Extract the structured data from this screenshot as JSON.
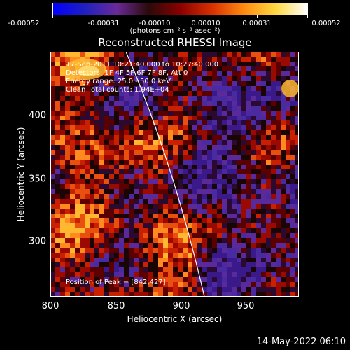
{
  "colorbar": {
    "tick_labels": [
      "-0.00052",
      "-0.00031",
      "-0.00010",
      "0.00010",
      "0.00031",
      "0.00052"
    ],
    "units_label": "(photons cm⁻² s⁻¹ asec⁻²)",
    "colors": [
      "#0000ff",
      "#2020c0",
      "#6a2a9a",
      "#2a0a0a",
      "#8a0000",
      "#d83000",
      "#ff8a10",
      "#ffd840",
      "#ffffff"
    ]
  },
  "title": "Reconstructed RHESSI Image",
  "annotations": {
    "time": "17-Sep-2011 10:21:40.000 to 10:27:40.000",
    "detectors": "Detectors: 1F 4F 5F 6F 7F 8F, Att 0",
    "energy": "Energy range: 25.0 - 50.0 keV",
    "clean": "Clean    Total counts: 1.94E+04"
  },
  "peak": "Position of Peak = [842,427]",
  "axes": {
    "x_ticks": [
      "800",
      "850",
      "900",
      "950"
    ],
    "y_ticks": [
      "300",
      "350",
      "400"
    ],
    "xlabel": "Heliocentric X (arcsec)",
    "ylabel": "Heliocentric Y (arcsec)"
  },
  "footer": "14-May-2022 06:10",
  "image": {
    "limb_color": "#ffffff"
  }
}
